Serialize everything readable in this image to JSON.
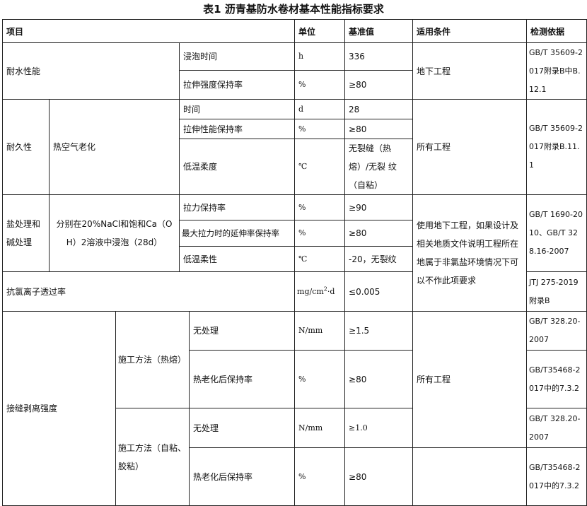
{
  "title": "表1 沥青基防水卷材基本性能指标要求",
  "headers": {
    "item": "项目",
    "unit": "单位",
    "value": "基准值",
    "condition": "适用条件",
    "basis": "检测依据"
  },
  "water": {
    "name": "耐水性能",
    "rows": [
      {
        "item": "浸泡时间",
        "unit": "h",
        "value": "336"
      },
      {
        "item": "拉伸强度保持率",
        "unit": "%",
        "value": "≥80"
      }
    ],
    "condition": "地下工程",
    "basis": "GB/T 35609-2017附录B中B.12.1"
  },
  "durability": {
    "name": "耐久性",
    "sub": "热空气老化",
    "rows": [
      {
        "item": "时间",
        "unit": "d",
        "value": "28"
      },
      {
        "item": "拉伸性能保持率",
        "unit": "%",
        "value": "≥80"
      },
      {
        "item": "低温柔度",
        "unit": "℃",
        "value": "无裂缝（热熔）/无裂 纹（自粘）"
      }
    ],
    "condition": "所有工程",
    "basis": "GB/T 35609-2017附录B.11.1"
  },
  "salt": {
    "name": "盐处理和碱处理",
    "sub": "分别在20%NaCl和饱和Ca（OH）2溶液中浸泡（28d）",
    "rows": [
      {
        "item": "拉力保持率",
        "unit": "%",
        "value": "≥90"
      },
      {
        "item": "最大拉力时的延伸率保持率",
        "unit": "%",
        "value": "≥80"
      },
      {
        "item": "低温柔性",
        "unit": "℃",
        "value": "-20，无裂纹"
      }
    ],
    "condition": "使用地下工程，如果设计及相关地质文件说明工程所在地属于非氯盐环境情况下可以不作此项要求",
    "basis": "GB/T 1690-2010、GB/T 328.16-2007"
  },
  "chloride": {
    "name": "抗氯离子透过率",
    "unit_base": "mg/cm",
    "unit_sup": "2",
    "unit_tail": "·d",
    "value": "≤0.005",
    "basis": "JTJ 275-2019附录B"
  },
  "seam": {
    "name": "接缝剥离强度",
    "condition": "所有工程",
    "methods": [
      {
        "name": "施工方法（热熔）",
        "rows": [
          {
            "item": "无处理",
            "unit": "N/mm",
            "value": "≥1.5",
            "basis": "GB/T 328.20-2007"
          },
          {
            "item": "热老化后保持率",
            "unit": "%",
            "value": "≥80",
            "basis": "GB/T35468-2017中的7.3.2"
          }
        ]
      },
      {
        "name": "施工方法（自粘、胶粘）",
        "rows": [
          {
            "item": "无处理",
            "unit": "N/mm",
            "value": "≥1.0",
            "basis": "GB/T 328.20-2007"
          },
          {
            "item": "热老化后保持率",
            "unit": "%",
            "value": "≥80",
            "basis": "GB/T35468-2017中的7.3.2"
          }
        ]
      }
    ]
  }
}
